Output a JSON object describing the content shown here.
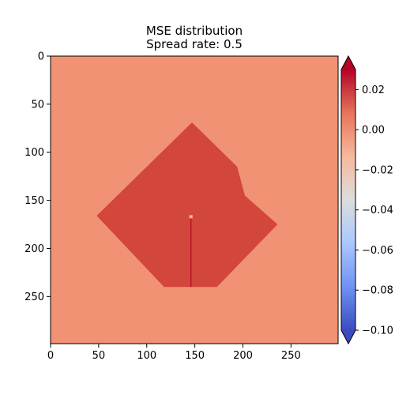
{
  "chart_data": {
    "type": "heatmap",
    "title": "MSE distribution",
    "subtitle": "Spread rate: 0.5",
    "xlabel": "",
    "ylabel": "",
    "xlim": [
      0,
      299
    ],
    "ylim": [
      299,
      0
    ],
    "x_ticks": [
      0,
      50,
      100,
      150,
      200,
      250
    ],
    "y_ticks": [
      0,
      50,
      100,
      150,
      200,
      250
    ],
    "x_tick_labels": [
      "0",
      "50",
      "100",
      "150",
      "200",
      "250"
    ],
    "y_tick_labels": [
      "0",
      "50",
      "100",
      "150",
      "200",
      "250"
    ],
    "grid": false,
    "background_value": 0.007,
    "background_color": "#f09273",
    "region": {
      "value": 0.022,
      "color": "#d2463c",
      "polygon": [
        [
          147,
          69
        ],
        [
          194,
          115
        ],
        [
          202,
          145
        ],
        [
          236,
          175
        ],
        [
          173,
          240
        ],
        [
          118,
          240
        ],
        [
          48,
          166
        ]
      ]
    },
    "line_artifact": {
      "color": "#b40426",
      "x": 146,
      "y_start": 169,
      "y_end": 240
    },
    "point_artifact": {
      "color": "#f7b89c",
      "x": 146,
      "y": 167
    },
    "colorbar": {
      "colormap": "coolwarm",
      "min": -0.1,
      "max": 0.03,
      "extend": "both",
      "ticks": [
        0.02,
        0.0,
        -0.02,
        -0.04,
        -0.06,
        -0.08,
        -0.1
      ],
      "tick_labels": [
        "0.02",
        "0.00",
        "−0.02",
        "−0.04",
        "−0.06",
        "−0.08",
        "−0.10"
      ],
      "colors": [
        "#3b4cc0",
        "#6f92f3",
        "#aac7fd",
        "#dcdddd",
        "#f7b89c",
        "#e7745b",
        "#b40426"
      ]
    }
  }
}
